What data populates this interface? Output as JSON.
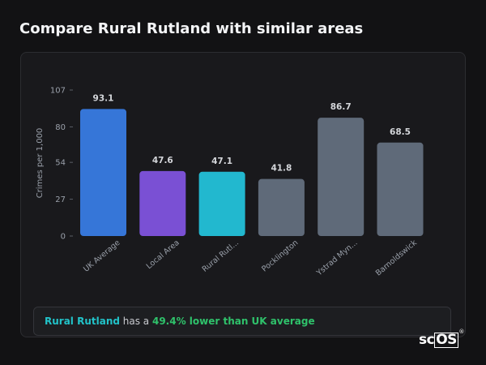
{
  "page": {
    "title": "Compare Rural Rutland with similar areas"
  },
  "chart_data": {
    "type": "bar",
    "ylabel": "Crimes per 1,000",
    "ylim": [
      0,
      107
    ],
    "y_ticks": [
      0,
      27,
      54,
      80,
      107
    ],
    "categories": [
      "UK Average",
      "Local Area",
      "Rural Rutl...",
      "Pocklington",
      "Ystrad Myn...",
      "Barnoldswick"
    ],
    "values": [
      93.1,
      47.6,
      47.1,
      41.8,
      86.7,
      68.5
    ],
    "value_labels": [
      "93.1",
      "47.6",
      "47.1",
      "41.8",
      "86.7",
      "68.5"
    ],
    "bar_colors": [
      "#3676d8",
      "#7a50d4",
      "#22b8cf",
      "#5f6a79",
      "#5f6a79",
      "#5f6a79"
    ],
    "grid": false,
    "legend": "none"
  },
  "summary": {
    "area_name": "Rural Rutland",
    "middle_text": " has a ",
    "comparison": "49.4% lower than UK average"
  },
  "logo": {
    "prefix": "sc",
    "boxed": "OS",
    "mark": "®"
  },
  "colors": {
    "background": "#121214",
    "card": "#19191c",
    "axis_text": "#9aa0aa",
    "value_label": "#d4d6da",
    "highlight": "#22c3c9",
    "positive": "#2fc26b"
  }
}
